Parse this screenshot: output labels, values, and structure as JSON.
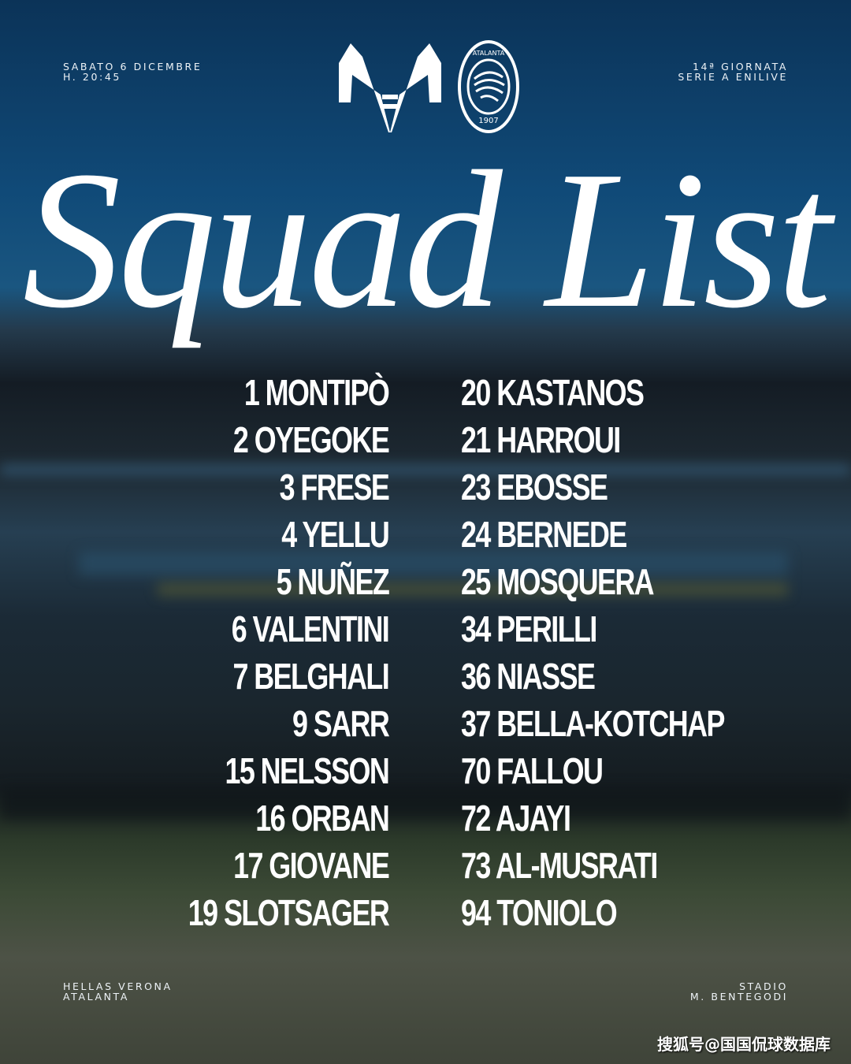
{
  "header": {
    "date": "SABATO 6 DICEMBRE",
    "time": "H. 20:45",
    "round": "14ª GIORNATA",
    "competition": "SERIE A ENILIVE",
    "home_logo": "hellas-verona-logo",
    "away_logo": "atalanta-logo",
    "away_logo_text": "ATALANTA",
    "away_logo_year": "1907"
  },
  "title": "Squad List",
  "squad_left": [
    "1 MONTIPÒ",
    "2 OYEGOKE",
    "3 FRESE",
    "4 YELLU",
    "5 NUÑEZ",
    "6 VALENTINI",
    "7 BELGHALI",
    "9 SARR",
    "15 NELSSON",
    "16 ORBAN",
    "17 GIOVANE",
    "19 SLOTSAGER"
  ],
  "squad_right": [
    "20 KASTANOS",
    "21 HARROUI",
    "23 EBOSSE",
    "24 BERNEDE",
    "25 MOSQUERA",
    "34 PERILLI",
    "36 NIASSE",
    "37 BELLA-KOTCHAP",
    "70 FALLOU",
    "72 AJAYI",
    "73 AL-MUSRATI",
    "94 TONIOLO"
  ],
  "footer": {
    "home_team": "HELLAS VERONA",
    "away_team": "ATALANTA",
    "venue_line1": "STADIO",
    "venue_line2": "M. BENTEGODI"
  },
  "watermark": "搜狐号@国国侃球数据库"
}
